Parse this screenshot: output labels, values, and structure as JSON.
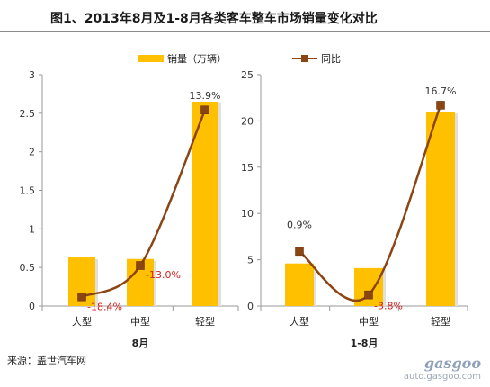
{
  "title": "图1、2013年8月及1-8月各类客车整车市场销量变化对比",
  "source": "来源：盖世汽车网",
  "watermark": {
    "logo": "gasgoo",
    "url": "auto.gasgoo.com"
  },
  "colors": {
    "bar": "#FFC000",
    "bar_shadow": "#e0e0e0",
    "line": "#8B4513",
    "marker": "#8B4513",
    "label_neg": "#d62020",
    "label_pos": "#333333"
  },
  "chart_data": [
    {
      "type": "bar",
      "title": "8月",
      "categories": [
        "大型",
        "中型",
        "轻型"
      ],
      "ylim": [
        0,
        3
      ],
      "yticks": [
        "0",
        "0.5",
        "1",
        "1.5",
        "2",
        "2.5",
        "3"
      ],
      "y2lim": [
        -20,
        20
      ],
      "legend": {
        "position": "top",
        "entries": [
          "销量（万辆）",
          "同比"
        ]
      },
      "series": [
        {
          "name": "销量（万辆）",
          "type": "bar",
          "values": [
            0.63,
            0.61,
            2.65
          ]
        },
        {
          "name": "同比",
          "type": "line",
          "values": [
            -18.4,
            -13.0,
            13.9
          ],
          "labels": [
            "-18.4%",
            "-13.0%",
            "13.9%"
          ]
        }
      ]
    },
    {
      "type": "bar",
      "title": "1-8月",
      "categories": [
        "大型",
        "中型",
        "轻型"
      ],
      "ylim": [
        0,
        25
      ],
      "yticks": [
        "0",
        "5",
        "10",
        "15",
        "20",
        "25"
      ],
      "y2lim": [
        -5,
        20
      ],
      "series": [
        {
          "name": "销量（万辆）",
          "type": "bar",
          "values": [
            4.6,
            4.1,
            21.0
          ]
        },
        {
          "name": "同比",
          "type": "line",
          "values": [
            0.9,
            -3.8,
            16.7
          ],
          "labels": [
            "0.9%",
            "-3.8%",
            "16.7%"
          ]
        }
      ]
    }
  ]
}
